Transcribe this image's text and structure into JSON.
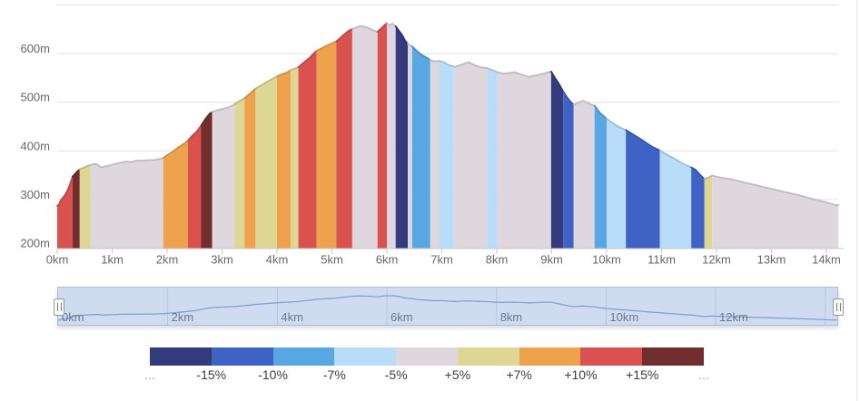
{
  "chart_data": {
    "type": "area",
    "x_unit": "km",
    "y_unit": "m",
    "xlim": [
      0,
      14.22
    ],
    "ylim": [
      200,
      700
    ],
    "grid": "horizontal-only",
    "y_ticks": [
      {
        "value": 200,
        "label": "200m"
      },
      {
        "value": 300,
        "label": "300m"
      },
      {
        "value": 400,
        "label": "400m"
      },
      {
        "value": 500,
        "label": "500m"
      },
      {
        "value": 600,
        "label": "600m"
      }
    ],
    "x_ticks": [
      {
        "value": 0,
        "label": "0km"
      },
      {
        "value": 1,
        "label": "1km"
      },
      {
        "value": 2,
        "label": "2km"
      },
      {
        "value": 3,
        "label": "3km"
      },
      {
        "value": 4,
        "label": "4km"
      },
      {
        "value": 5,
        "label": "5km"
      },
      {
        "value": 6,
        "label": "6km"
      },
      {
        "value": 7,
        "label": "7km"
      },
      {
        "value": 8,
        "label": "8km"
      },
      {
        "value": 9,
        "label": "9km"
      },
      {
        "value": 10,
        "label": "10km"
      },
      {
        "value": 11,
        "label": "11km"
      },
      {
        "value": 12,
        "label": "12km"
      },
      {
        "value": 13,
        "label": "13km"
      },
      {
        "value": 14,
        "label": "14km"
      }
    ],
    "points": [
      [
        0.0,
        287
      ],
      [
        0.03,
        289
      ],
      [
        0.07,
        299
      ],
      [
        0.1,
        303
      ],
      [
        0.14,
        309
      ],
      [
        0.18,
        317
      ],
      [
        0.22,
        327
      ],
      [
        0.28,
        347
      ],
      [
        0.32,
        352
      ],
      [
        0.36,
        357
      ],
      [
        0.41,
        362
      ],
      [
        0.45,
        364
      ],
      [
        0.5,
        366
      ],
      [
        0.55,
        369
      ],
      [
        0.61,
        371
      ],
      [
        0.68,
        373
      ],
      [
        0.73,
        372
      ],
      [
        0.8,
        366
      ],
      [
        0.87,
        368
      ],
      [
        0.95,
        370
      ],
      [
        1.05,
        373
      ],
      [
        1.15,
        376
      ],
      [
        1.25,
        378
      ],
      [
        1.35,
        377
      ],
      [
        1.45,
        380
      ],
      [
        1.55,
        380
      ],
      [
        1.65,
        381
      ],
      [
        1.75,
        381
      ],
      [
        1.85,
        383
      ],
      [
        1.93,
        385
      ],
      [
        2.0,
        391
      ],
      [
        2.1,
        398
      ],
      [
        2.2,
        407
      ],
      [
        2.3,
        414
      ],
      [
        2.38,
        421
      ],
      [
        2.45,
        430
      ],
      [
        2.55,
        441
      ],
      [
        2.62,
        452
      ],
      [
        2.7,
        466
      ],
      [
        2.78,
        477
      ],
      [
        2.82,
        480
      ],
      [
        2.9,
        483
      ],
      [
        3.0,
        486
      ],
      [
        3.1,
        489
      ],
      [
        3.17,
        492
      ],
      [
        3.23,
        496
      ],
      [
        3.32,
        503
      ],
      [
        3.41,
        508
      ],
      [
        3.5,
        517
      ],
      [
        3.56,
        523
      ],
      [
        3.61,
        528
      ],
      [
        3.7,
        534
      ],
      [
        3.8,
        541
      ],
      [
        3.9,
        547
      ],
      [
        4.0,
        553
      ],
      [
        4.1,
        558
      ],
      [
        4.18,
        561
      ],
      [
        4.25,
        566
      ],
      [
        4.32,
        569
      ],
      [
        4.39,
        572
      ],
      [
        4.5,
        583
      ],
      [
        4.6,
        592
      ],
      [
        4.66,
        599
      ],
      [
        4.72,
        606
      ],
      [
        4.8,
        610
      ],
      [
        4.9,
        616
      ],
      [
        5.0,
        621
      ],
      [
        5.08,
        625
      ],
      [
        5.15,
        632
      ],
      [
        5.25,
        642
      ],
      [
        5.32,
        648
      ],
      [
        5.37,
        651
      ],
      [
        5.45,
        654
      ],
      [
        5.52,
        657
      ],
      [
        5.6,
        655
      ],
      [
        5.68,
        652
      ],
      [
        5.75,
        648
      ],
      [
        5.83,
        645
      ],
      [
        5.9,
        652
      ],
      [
        5.96,
        659
      ],
      [
        6.0,
        663
      ],
      [
        6.05,
        658
      ],
      [
        6.1,
        662
      ],
      [
        6.16,
        656
      ],
      [
        6.22,
        647
      ],
      [
        6.28,
        638
      ],
      [
        6.33,
        627
      ],
      [
        6.38,
        620
      ],
      [
        6.43,
        617
      ],
      [
        6.46,
        615
      ],
      [
        6.55,
        605
      ],
      [
        6.64,
        597
      ],
      [
        6.72,
        592
      ],
      [
        6.79,
        587
      ],
      [
        6.86,
        584
      ],
      [
        6.95,
        585
      ],
      [
        7.02,
        583
      ],
      [
        7.1,
        578
      ],
      [
        7.16,
        575
      ],
      [
        7.25,
        573
      ],
      [
        7.35,
        577
      ],
      [
        7.45,
        581
      ],
      [
        7.5,
        582
      ],
      [
        7.58,
        577
      ],
      [
        7.7,
        572
      ],
      [
        7.83,
        570
      ],
      [
        7.92,
        566
      ],
      [
        8.01,
        562
      ],
      [
        8.12,
        559
      ],
      [
        8.22,
        560
      ],
      [
        8.32,
        562
      ],
      [
        8.45,
        557
      ],
      [
        8.58,
        552
      ],
      [
        8.7,
        555
      ],
      [
        8.82,
        558
      ],
      [
        8.92,
        561
      ],
      [
        8.99,
        563
      ],
      [
        9.06,
        550
      ],
      [
        9.13,
        538
      ],
      [
        9.21,
        522
      ],
      [
        9.28,
        510
      ],
      [
        9.35,
        500
      ],
      [
        9.4,
        495
      ],
      [
        9.48,
        499
      ],
      [
        9.57,
        503
      ],
      [
        9.65,
        499
      ],
      [
        9.72,
        495
      ],
      [
        9.78,
        493
      ],
      [
        9.88,
        478
      ],
      [
        10.0,
        466
      ],
      [
        10.1,
        458
      ],
      [
        10.22,
        449
      ],
      [
        10.35,
        443
      ],
      [
        10.48,
        434
      ],
      [
        10.62,
        424
      ],
      [
        10.75,
        414
      ],
      [
        10.85,
        407
      ],
      [
        10.97,
        401
      ],
      [
        11.1,
        392
      ],
      [
        11.25,
        383
      ],
      [
        11.4,
        373
      ],
      [
        11.54,
        366
      ],
      [
        11.62,
        361
      ],
      [
        11.7,
        351
      ],
      [
        11.78,
        342
      ],
      [
        11.85,
        345
      ],
      [
        11.92,
        349
      ],
      [
        12.0,
        347
      ],
      [
        12.12,
        344
      ],
      [
        12.25,
        342
      ],
      [
        12.4,
        338
      ],
      [
        12.55,
        334
      ],
      [
        12.7,
        330
      ],
      [
        12.85,
        326
      ],
      [
        13.0,
        322
      ],
      [
        13.15,
        318
      ],
      [
        13.3,
        314
      ],
      [
        13.45,
        310
      ],
      [
        13.6,
        306
      ],
      [
        13.75,
        301
      ],
      [
        13.9,
        297
      ],
      [
        14.0,
        294
      ],
      [
        14.1,
        291
      ],
      [
        14.18,
        288
      ],
      [
        14.22,
        289
      ]
    ],
    "slope_colors": {
      "down4": "#333b7d",
      "down3": "#3e63c4",
      "down2": "#58a7e2",
      "down1": "#b9ddf8",
      "flat": "#ded8de",
      "up1": "#ddd694",
      "up2": "#efa24d",
      "up3": "#d95250",
      "up4": "#702e2e"
    },
    "slope_segments": [
      {
        "from": 0.0,
        "to": 0.28,
        "grade": "up3"
      },
      {
        "from": 0.28,
        "to": 0.41,
        "grade": "up4"
      },
      {
        "from": 0.41,
        "to": 0.61,
        "grade": "up1"
      },
      {
        "from": 0.61,
        "to": 1.93,
        "grade": "flat"
      },
      {
        "from": 1.93,
        "to": 2.38,
        "grade": "up2"
      },
      {
        "from": 2.38,
        "to": 2.62,
        "grade": "up3"
      },
      {
        "from": 2.62,
        "to": 2.82,
        "grade": "up4"
      },
      {
        "from": 2.82,
        "to": 3.23,
        "grade": "flat"
      },
      {
        "from": 3.23,
        "to": 3.41,
        "grade": "up1"
      },
      {
        "from": 3.41,
        "to": 3.61,
        "grade": "up2"
      },
      {
        "from": 3.61,
        "to": 4.0,
        "grade": "up1"
      },
      {
        "from": 4.0,
        "to": 4.25,
        "grade": "up2"
      },
      {
        "from": 4.25,
        "to": 4.39,
        "grade": "up1"
      },
      {
        "from": 4.39,
        "to": 4.72,
        "grade": "up3"
      },
      {
        "from": 4.72,
        "to": 5.08,
        "grade": "up2"
      },
      {
        "from": 5.08,
        "to": 5.37,
        "grade": "up3"
      },
      {
        "from": 5.37,
        "to": 5.83,
        "grade": "flat"
      },
      {
        "from": 5.83,
        "to": 6.0,
        "grade": "up3"
      },
      {
        "from": 6.0,
        "to": 6.16,
        "grade": "flat"
      },
      {
        "from": 6.16,
        "to": 6.38,
        "grade": "down4"
      },
      {
        "from": 6.38,
        "to": 6.46,
        "grade": "flat"
      },
      {
        "from": 6.46,
        "to": 6.79,
        "grade": "down2"
      },
      {
        "from": 6.79,
        "to": 6.95,
        "grade": "flat"
      },
      {
        "from": 6.95,
        "to": 7.22,
        "grade": "down1"
      },
      {
        "from": 7.22,
        "to": 7.83,
        "grade": "flat"
      },
      {
        "from": 7.83,
        "to": 8.01,
        "grade": "down1"
      },
      {
        "from": 8.01,
        "to": 8.99,
        "grade": "flat"
      },
      {
        "from": 8.99,
        "to": 9.21,
        "grade": "down4"
      },
      {
        "from": 9.21,
        "to": 9.4,
        "grade": "down3"
      },
      {
        "from": 9.4,
        "to": 9.78,
        "grade": "flat"
      },
      {
        "from": 9.78,
        "to": 10.0,
        "grade": "down2"
      },
      {
        "from": 10.0,
        "to": 10.35,
        "grade": "down1"
      },
      {
        "from": 10.35,
        "to": 10.97,
        "grade": "down3"
      },
      {
        "from": 10.97,
        "to": 11.54,
        "grade": "down1"
      },
      {
        "from": 11.54,
        "to": 11.78,
        "grade": "down3"
      },
      {
        "from": 11.78,
        "to": 11.92,
        "grade": "up1"
      },
      {
        "from": 11.92,
        "to": 14.22,
        "grade": "flat"
      }
    ]
  },
  "navigator": {
    "labels": [
      {
        "km": 0,
        "label": "0km"
      },
      {
        "km": 2,
        "label": "2km"
      },
      {
        "km": 4,
        "label": "4km"
      },
      {
        "km": 6,
        "label": "6km"
      },
      {
        "km": 8,
        "label": "8km"
      },
      {
        "km": 10,
        "label": "10km"
      },
      {
        "km": 12,
        "label": "12km"
      }
    ],
    "gridline_km": [
      2,
      4,
      6,
      8,
      10,
      12,
      14
    ],
    "bg_color": "#cfdcf0",
    "line_color": "#7da2d9",
    "gridline_color": "#b7c4e1"
  },
  "legend": {
    "swatch_colors": [
      "#333b7d",
      "#3e63c4",
      "#58a7e2",
      "#b9ddf8",
      "#ded8de",
      "#ddd694",
      "#efa24d",
      "#d95250",
      "#702e2e"
    ],
    "boundary_labels": [
      "...",
      "-15%",
      "-10%",
      "-7%",
      "-5%",
      "+5%",
      "+7%",
      "+10%",
      "+15%",
      "..."
    ]
  },
  "style": {
    "axis_text_color": "#666666",
    "gridline_color": "#e2e2e5",
    "axis_line_color": "#c9c9c9"
  }
}
